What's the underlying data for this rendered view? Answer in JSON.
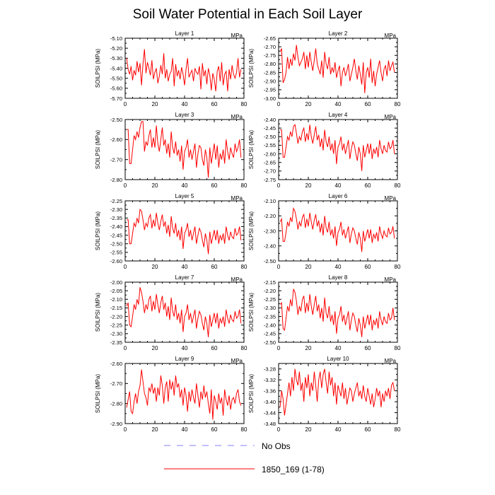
{
  "chart_data": {
    "type": "line",
    "title": "Soil Water Potential in Each Soil Layer",
    "units_label": "MPa",
    "ylabel": "SOILPSI  (MPa)",
    "xlim": [
      0,
      80
    ],
    "xticks": [
      0,
      20,
      40,
      60,
      80
    ],
    "colors": {
      "model": "#ff0000",
      "obs": "#8080ff"
    },
    "legend": [
      {
        "name": "No Obs",
        "style": "dashed",
        "color": "#8080ff"
      },
      {
        "name": "1850_169 (1-78)",
        "style": "solid",
        "color": "#ff0000"
      }
    ],
    "panels": [
      {
        "label": "Layer 1",
        "ylim": [
          -5.7,
          -5.1
        ],
        "yticks": [
          -5.7,
          -5.6,
          -5.5,
          -5.4,
          -5.3,
          -5.2,
          -5.1
        ],
        "yfmt": 2,
        "values": [
          -5.3,
          -5.41,
          -5.46,
          -5.38,
          -5.52,
          -5.42,
          -5.47,
          -5.33,
          -5.44,
          -5.35,
          -5.57,
          -5.36,
          -5.21,
          -5.45,
          -5.34,
          -5.4,
          -5.47,
          -5.32,
          -5.51,
          -5.44,
          -5.4,
          -5.55,
          -5.48,
          -5.37,
          -5.46,
          -5.25,
          -5.5,
          -5.41,
          -5.53,
          -5.46,
          -5.43,
          -5.3,
          -5.58,
          -5.36,
          -5.48,
          -5.42,
          -5.51,
          -5.39,
          -5.46,
          -5.57,
          -5.41,
          -5.3,
          -5.49,
          -5.45,
          -5.42,
          -5.53,
          -5.4,
          -5.44,
          -5.46,
          -5.38,
          -5.61,
          -5.35,
          -5.48,
          -5.42,
          -5.56,
          -5.4,
          -5.47,
          -5.62,
          -5.45,
          -5.51,
          -5.63,
          -5.43,
          -5.38,
          -5.53,
          -5.34,
          -5.57,
          -5.46,
          -5.43,
          -5.63,
          -5.41,
          -5.51,
          -5.37,
          -5.46,
          -5.5,
          -5.44,
          -5.3,
          -5.49,
          -5.41
        ]
      },
      {
        "label": "Layer 2",
        "ylim": [
          -3.0,
          -2.65
        ],
        "yticks": [
          -3.0,
          -2.95,
          -2.9,
          -2.85,
          -2.8,
          -2.75,
          -2.7,
          -2.65
        ],
        "yfmt": 2,
        "values": [
          -2.73,
          -2.71,
          -2.91,
          -2.89,
          -2.85,
          -2.76,
          -2.83,
          -2.77,
          -2.81,
          -2.74,
          -2.78,
          -2.69,
          -2.76,
          -2.81,
          -2.79,
          -2.77,
          -2.73,
          -2.83,
          -2.75,
          -2.82,
          -2.73,
          -2.79,
          -2.84,
          -2.78,
          -2.71,
          -2.8,
          -2.83,
          -2.86,
          -2.78,
          -2.88,
          -2.73,
          -2.8,
          -2.83,
          -2.76,
          -2.86,
          -2.82,
          -2.85,
          -2.79,
          -2.88,
          -2.84,
          -2.81,
          -2.93,
          -2.85,
          -2.82,
          -2.87,
          -2.84,
          -2.8,
          -2.9,
          -2.86,
          -2.82,
          -2.77,
          -2.84,
          -2.89,
          -2.81,
          -2.86,
          -2.92,
          -2.79,
          -2.97,
          -2.85,
          -2.82,
          -2.88,
          -2.77,
          -2.91,
          -2.84,
          -2.93,
          -2.86,
          -2.82,
          -2.78,
          -2.85,
          -2.9,
          -2.83,
          -2.81,
          -2.87,
          -2.78,
          -2.84,
          -2.81,
          -2.79,
          -2.85
        ]
      },
      {
        "label": "Layer 3",
        "ylim": [
          -2.8,
          -2.5
        ],
        "yticks": [
          -2.8,
          -2.7,
          -2.6,
          -2.5
        ],
        "yfmt": 2,
        "values": [
          -2.55,
          -2.55,
          -2.72,
          -2.72,
          -2.65,
          -2.58,
          -2.6,
          -2.56,
          -2.59,
          -2.54,
          -2.51,
          -2.51,
          -2.66,
          -2.61,
          -2.63,
          -2.58,
          -2.55,
          -2.64,
          -2.59,
          -2.64,
          -2.53,
          -2.62,
          -2.66,
          -2.6,
          -2.54,
          -2.63,
          -2.6,
          -2.67,
          -2.62,
          -2.69,
          -2.56,
          -2.64,
          -2.67,
          -2.61,
          -2.68,
          -2.65,
          -2.71,
          -2.63,
          -2.75,
          -2.66,
          -2.64,
          -2.6,
          -2.69,
          -2.65,
          -2.7,
          -2.66,
          -2.62,
          -2.74,
          -2.67,
          -2.63,
          -2.64,
          -2.7,
          -2.73,
          -2.65,
          -2.69,
          -2.79,
          -2.64,
          -2.72,
          -2.67,
          -2.62,
          -2.7,
          -2.63,
          -2.74,
          -2.67,
          -2.7,
          -2.65,
          -2.72,
          -2.6,
          -2.66,
          -2.7,
          -2.64,
          -2.67,
          -2.69,
          -2.62,
          -2.66,
          -2.64,
          -2.6,
          -2.69
        ]
      },
      {
        "label": "Layer 4",
        "ylim": [
          -2.75,
          -2.4
        ],
        "yticks": [
          -2.75,
          -2.7,
          -2.65,
          -2.6,
          -2.55,
          -2.5,
          -2.45,
          -2.4
        ],
        "yfmt": 2,
        "values": [
          -2.46,
          -2.46,
          -2.62,
          -2.62,
          -2.56,
          -2.5,
          -2.52,
          -2.47,
          -2.5,
          -2.44,
          -2.43,
          -2.48,
          -2.54,
          -2.5,
          -2.52,
          -2.47,
          -2.45,
          -2.53,
          -2.48,
          -2.52,
          -2.43,
          -2.5,
          -2.54,
          -2.49,
          -2.44,
          -2.52,
          -2.49,
          -2.56,
          -2.51,
          -2.58,
          -2.46,
          -2.53,
          -2.56,
          -2.5,
          -2.58,
          -2.54,
          -2.6,
          -2.52,
          -2.66,
          -2.56,
          -2.54,
          -2.5,
          -2.58,
          -2.54,
          -2.6,
          -2.56,
          -2.52,
          -2.63,
          -2.57,
          -2.53,
          -2.55,
          -2.6,
          -2.64,
          -2.56,
          -2.6,
          -2.7,
          -2.55,
          -2.62,
          -2.58,
          -2.54,
          -2.6,
          -2.54,
          -2.63,
          -2.57,
          -2.6,
          -2.56,
          -2.62,
          -2.52,
          -2.57,
          -2.6,
          -2.55,
          -2.58,
          -2.59,
          -2.53,
          -2.57,
          -2.56,
          -2.52,
          -2.6
        ]
      },
      {
        "label": "Layer 5",
        "ylim": [
          -2.6,
          -2.25
        ],
        "yticks": [
          -2.6,
          -2.55,
          -2.5,
          -2.45,
          -2.4,
          -2.35,
          -2.3,
          -2.25
        ],
        "yfmt": 2,
        "values": [
          -2.36,
          -2.36,
          -2.5,
          -2.5,
          -2.44,
          -2.38,
          -2.4,
          -2.35,
          -2.38,
          -2.3,
          -2.31,
          -2.36,
          -2.42,
          -2.38,
          -2.4,
          -2.35,
          -2.33,
          -2.41,
          -2.36,
          -2.4,
          -2.32,
          -2.38,
          -2.42,
          -2.37,
          -2.33,
          -2.4,
          -2.37,
          -2.44,
          -2.39,
          -2.46,
          -2.34,
          -2.41,
          -2.44,
          -2.38,
          -2.46,
          -2.42,
          -2.48,
          -2.4,
          -2.53,
          -2.44,
          -2.42,
          -2.38,
          -2.46,
          -2.42,
          -2.48,
          -2.44,
          -2.4,
          -2.5,
          -2.45,
          -2.41,
          -2.43,
          -2.48,
          -2.52,
          -2.44,
          -2.48,
          -2.56,
          -2.43,
          -2.5,
          -2.46,
          -2.42,
          -2.48,
          -2.42,
          -2.5,
          -2.45,
          -2.48,
          -2.44,
          -2.5,
          -2.4,
          -2.45,
          -2.48,
          -2.43,
          -2.46,
          -2.47,
          -2.41,
          -2.45,
          -2.44,
          -2.4,
          -2.48
        ]
      },
      {
        "label": "Layer 6",
        "ylim": [
          -2.5,
          -2.1
        ],
        "yticks": [
          -2.5,
          -2.4,
          -2.3,
          -2.2,
          -2.1
        ],
        "yfmt": 2,
        "values": [
          -2.24,
          -2.22,
          -2.37,
          -2.37,
          -2.31,
          -2.24,
          -2.27,
          -2.21,
          -2.24,
          -2.15,
          -2.17,
          -2.22,
          -2.29,
          -2.24,
          -2.27,
          -2.21,
          -2.19,
          -2.28,
          -2.22,
          -2.27,
          -2.18,
          -2.24,
          -2.29,
          -2.23,
          -2.19,
          -2.27,
          -2.23,
          -2.31,
          -2.25,
          -2.33,
          -2.2,
          -2.28,
          -2.31,
          -2.24,
          -2.33,
          -2.29,
          -2.35,
          -2.27,
          -2.4,
          -2.31,
          -2.29,
          -2.24,
          -2.33,
          -2.29,
          -2.35,
          -2.31,
          -2.27,
          -2.38,
          -2.32,
          -2.28,
          -2.3,
          -2.35,
          -2.39,
          -2.31,
          -2.35,
          -2.44,
          -2.3,
          -2.37,
          -2.33,
          -2.29,
          -2.35,
          -2.29,
          -2.38,
          -2.32,
          -2.35,
          -2.31,
          -2.37,
          -2.27,
          -2.32,
          -2.35,
          -2.3,
          -2.33,
          -2.34,
          -2.28,
          -2.32,
          -2.31,
          -2.27,
          -2.35
        ]
      },
      {
        "label": "Layer 7",
        "ylim": [
          -2.35,
          -2.0
        ],
        "yticks": [
          -2.35,
          -2.3,
          -2.25,
          -2.2,
          -2.15,
          -2.1,
          -2.05,
          -2.0
        ],
        "yfmt": 2,
        "values": [
          -2.14,
          -2.12,
          -2.25,
          -2.26,
          -2.2,
          -2.13,
          -2.16,
          -2.1,
          -2.13,
          -2.03,
          -2.06,
          -2.11,
          -2.18,
          -2.13,
          -2.16,
          -2.1,
          -2.08,
          -2.17,
          -2.11,
          -2.16,
          -2.07,
          -2.13,
          -2.18,
          -2.12,
          -2.08,
          -2.16,
          -2.12,
          -2.2,
          -2.14,
          -2.22,
          -2.09,
          -2.17,
          -2.2,
          -2.13,
          -2.22,
          -2.18,
          -2.24,
          -2.16,
          -2.29,
          -2.2,
          -2.18,
          -2.13,
          -2.22,
          -2.18,
          -2.24,
          -2.2,
          -2.16,
          -2.27,
          -2.21,
          -2.17,
          -2.19,
          -2.24,
          -2.28,
          -2.2,
          -2.24,
          -2.32,
          -2.19,
          -2.26,
          -2.22,
          -2.18,
          -2.24,
          -2.18,
          -2.27,
          -2.21,
          -2.24,
          -2.2,
          -2.26,
          -2.16,
          -2.21,
          -2.24,
          -2.19,
          -2.22,
          -2.23,
          -2.17,
          -2.21,
          -2.2,
          -2.16,
          -2.24
        ]
      },
      {
        "label": "Layer 8",
        "ylim": [
          -2.5,
          -2.15
        ],
        "yticks": [
          -2.5,
          -2.45,
          -2.4,
          -2.35,
          -2.3,
          -2.25,
          -2.2,
          -2.15
        ],
        "yfmt": 2,
        "values": [
          -2.28,
          -2.27,
          -2.42,
          -2.43,
          -2.36,
          -2.29,
          -2.32,
          -2.25,
          -2.29,
          -2.19,
          -2.21,
          -2.26,
          -2.34,
          -2.29,
          -2.32,
          -2.25,
          -2.23,
          -2.33,
          -2.27,
          -2.32,
          -2.22,
          -2.29,
          -2.34,
          -2.28,
          -2.23,
          -2.32,
          -2.28,
          -2.36,
          -2.3,
          -2.38,
          -2.24,
          -2.33,
          -2.36,
          -2.29,
          -2.38,
          -2.34,
          -2.4,
          -2.32,
          -2.45,
          -2.36,
          -2.34,
          -2.29,
          -2.38,
          -2.34,
          -2.4,
          -2.36,
          -2.32,
          -2.43,
          -2.37,
          -2.33,
          -2.35,
          -2.4,
          -2.44,
          -2.36,
          -2.4,
          -2.47,
          -2.35,
          -2.42,
          -2.38,
          -2.34,
          -2.4,
          -2.34,
          -2.43,
          -2.37,
          -2.4,
          -2.36,
          -2.42,
          -2.32,
          -2.37,
          -2.4,
          -2.35,
          -2.38,
          -2.39,
          -2.33,
          -2.37,
          -2.36,
          -2.3,
          -2.37
        ]
      },
      {
        "label": "Layer 9",
        "ylim": [
          -2.9,
          -2.6
        ],
        "yticks": [
          -2.9,
          -2.8,
          -2.7,
          -2.6
        ],
        "yfmt": 2,
        "values": [
          -2.82,
          -2.78,
          -2.74,
          -2.84,
          -2.85,
          -2.79,
          -2.75,
          -2.8,
          -2.74,
          -2.71,
          -2.63,
          -2.69,
          -2.75,
          -2.77,
          -2.81,
          -2.72,
          -2.74,
          -2.7,
          -2.75,
          -2.72,
          -2.79,
          -2.72,
          -2.76,
          -2.66,
          -2.71,
          -2.8,
          -2.72,
          -2.69,
          -2.79,
          -2.68,
          -2.73,
          -2.69,
          -2.76,
          -2.66,
          -2.72,
          -2.7,
          -2.77,
          -2.73,
          -2.81,
          -2.72,
          -2.76,
          -2.84,
          -2.74,
          -2.79,
          -2.73,
          -2.77,
          -2.8,
          -2.7,
          -2.76,
          -2.82,
          -2.74,
          -2.78,
          -2.71,
          -2.77,
          -2.74,
          -2.8,
          -2.85,
          -2.73,
          -2.88,
          -2.76,
          -2.79,
          -2.83,
          -2.75,
          -2.8,
          -2.77,
          -2.86,
          -2.73,
          -2.78,
          -2.81,
          -2.76,
          -2.83,
          -2.78,
          -2.77,
          -2.8,
          -2.75,
          -2.73,
          -2.79,
          -2.81
        ]
      },
      {
        "label": "Layer 10",
        "ylim": [
          -3.48,
          -3.26
        ],
        "yticks": [
          -3.48,
          -3.44,
          -3.4,
          -3.36,
          -3.32,
          -3.28
        ],
        "yfmt": 2,
        "values": [
          -3.42,
          -3.36,
          -3.39,
          -3.45,
          -3.41,
          -3.37,
          -3.33,
          -3.38,
          -3.31,
          -3.36,
          -3.28,
          -3.32,
          -3.34,
          -3.29,
          -3.36,
          -3.33,
          -3.4,
          -3.31,
          -3.35,
          -3.3,
          -3.38,
          -3.33,
          -3.36,
          -3.29,
          -3.34,
          -3.4,
          -3.32,
          -3.29,
          -3.35,
          -3.3,
          -3.28,
          -3.33,
          -3.37,
          -3.29,
          -3.34,
          -3.31,
          -3.38,
          -3.33,
          -3.41,
          -3.34,
          -3.36,
          -3.38,
          -3.33,
          -3.39,
          -3.35,
          -3.41,
          -3.38,
          -3.35,
          -3.36,
          -3.4,
          -3.37,
          -3.35,
          -3.33,
          -3.38,
          -3.36,
          -3.39,
          -3.34,
          -3.38,
          -3.4,
          -3.35,
          -3.38,
          -3.41,
          -3.37,
          -3.42,
          -3.39,
          -3.35,
          -3.38,
          -3.36,
          -3.42,
          -3.37,
          -3.4,
          -3.36,
          -3.38,
          -3.35,
          -3.39,
          -3.34,
          -3.33,
          -3.36
        ]
      }
    ]
  }
}
